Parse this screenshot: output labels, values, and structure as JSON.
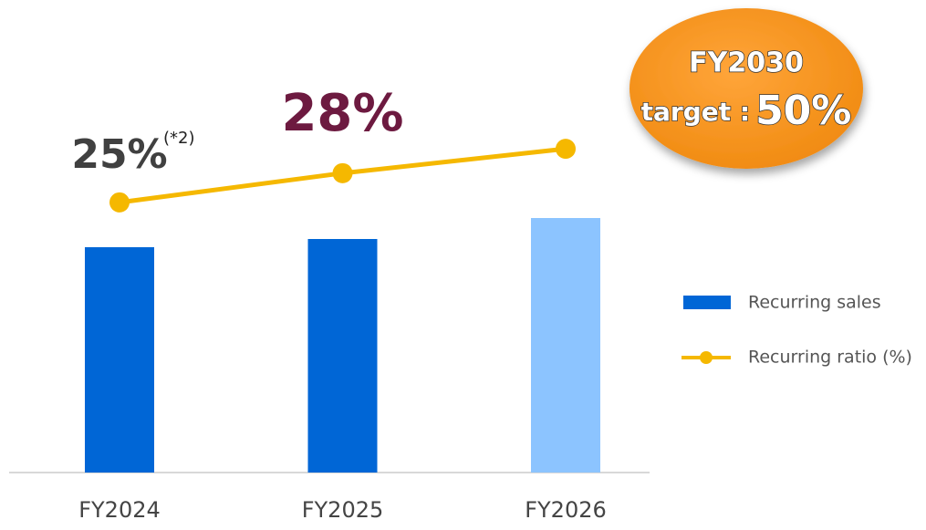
{
  "chart_data": {
    "type": "bar",
    "categories": [
      "FY2024",
      "FY2025",
      "FY2026"
    ],
    "ylim": [
      0,
      100
    ],
    "y2lim": [
      -2.75,
      44.1
    ],
    "series": [
      {
        "name": "Recurring sales",
        "type": "bar",
        "color": "#0066d6",
        "colors": [
          "#0066d6",
          "#0066d6",
          "#8cc4ff"
        ],
        "values": [
          49.4,
          51.2,
          55.8
        ]
      },
      {
        "name": "Recurring ratio (%)",
        "type": "line",
        "axis": "y2",
        "color": "#f5b800",
        "values": [
          25,
          28,
          30.5
        ],
        "value_labels": [
          "25%",
          "28%",
          null
        ],
        "label_colors": [
          "#404040",
          "#6d1a40",
          null
        ]
      }
    ],
    "annotations": {
      "footnote": "(*2)",
      "target_year": "FY2030",
      "target_text": "target :",
      "target_value_label": "50%"
    },
    "legend": "right"
  }
}
